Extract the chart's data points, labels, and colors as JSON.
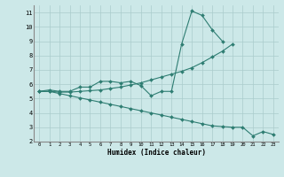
{
  "xlabel": "Humidex (Indice chaleur)",
  "xlim": [
    -0.5,
    23.5
  ],
  "ylim": [
    2,
    11.5
  ],
  "yticks": [
    2,
    3,
    4,
    5,
    6,
    7,
    8,
    9,
    10,
    11
  ],
  "xticks": [
    0,
    1,
    2,
    3,
    4,
    5,
    6,
    7,
    8,
    9,
    10,
    11,
    12,
    13,
    14,
    15,
    16,
    17,
    18,
    19,
    20,
    21,
    22,
    23
  ],
  "background_color": "#cce8e8",
  "grid_color": "#aacccc",
  "line_color": "#2e7d72",
  "line1_x": [
    0,
    1,
    2,
    3,
    4,
    5,
    6,
    7,
    8,
    9,
    10,
    11,
    12,
    13,
    14,
    15,
    16,
    17,
    18,
    19,
    20
  ],
  "line1_y": [
    5.5,
    5.6,
    5.5,
    5.5,
    5.8,
    5.8,
    6.2,
    6.2,
    6.1,
    6.2,
    5.9,
    5.2,
    5.5,
    5.5,
    8.8,
    11.1,
    10.8,
    9.8,
    9.0,
    null,
    null
  ],
  "line2_x": [
    0,
    1,
    2,
    3,
    4,
    5,
    6,
    7,
    8,
    9,
    10,
    11,
    12,
    13,
    14,
    15,
    16,
    17,
    18,
    19,
    20
  ],
  "line2_y": [
    5.5,
    5.5,
    5.45,
    5.45,
    5.5,
    5.55,
    5.6,
    5.7,
    5.8,
    5.95,
    6.1,
    6.3,
    6.5,
    6.7,
    6.9,
    7.15,
    7.5,
    7.9,
    8.3,
    8.8,
    null
  ],
  "line3_x": [
    0,
    1,
    2,
    3,
    4,
    5,
    6,
    7,
    8,
    9,
    10,
    11,
    12,
    13,
    14,
    15,
    16,
    17,
    18,
    19,
    20,
    21,
    22,
    23
  ],
  "line3_y": [
    5.5,
    5.5,
    5.35,
    5.2,
    5.05,
    4.9,
    4.75,
    4.6,
    4.45,
    4.3,
    4.15,
    4.0,
    3.85,
    3.7,
    3.55,
    3.4,
    3.25,
    3.1,
    3.05,
    3.0,
    3.0,
    2.4,
    2.7,
    2.5
  ]
}
